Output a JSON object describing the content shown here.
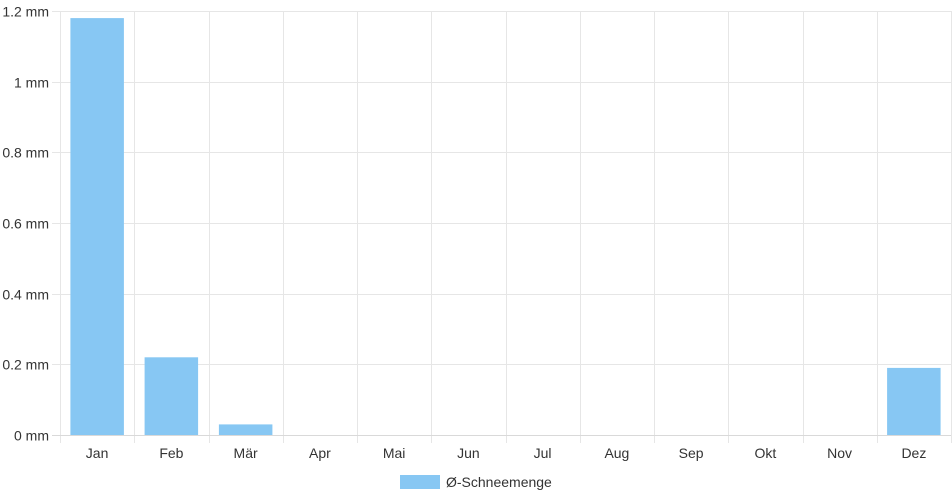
{
  "chart_data": {
    "type": "bar",
    "categories": [
      "Jan",
      "Feb",
      "Mär",
      "Apr",
      "Mai",
      "Jun",
      "Jul",
      "Aug",
      "Sep",
      "Okt",
      "Nov",
      "Dez"
    ],
    "series": [
      {
        "name": "Ø-Schneemenge",
        "values": [
          1.18,
          0.22,
          0.03,
          0,
          0,
          0,
          0,
          0,
          0,
          0,
          0,
          0.19
        ],
        "color": "#87c7f3"
      }
    ],
    "y_ticks": [
      "0 mm",
      "0.2 mm",
      "0.4 mm",
      "0.6 mm",
      "0.8 mm",
      "1 mm",
      "1.2 mm"
    ],
    "y_tick_values": [
      0,
      0.2,
      0.4,
      0.6,
      0.8,
      1,
      1.2
    ],
    "ylim": [
      0,
      1.2
    ],
    "y_unit": "mm",
    "grid": true,
    "grid_color": "#e6e6e6",
    "legend_position": "bottom-center",
    "title": "",
    "xlabel": "",
    "ylabel": ""
  }
}
